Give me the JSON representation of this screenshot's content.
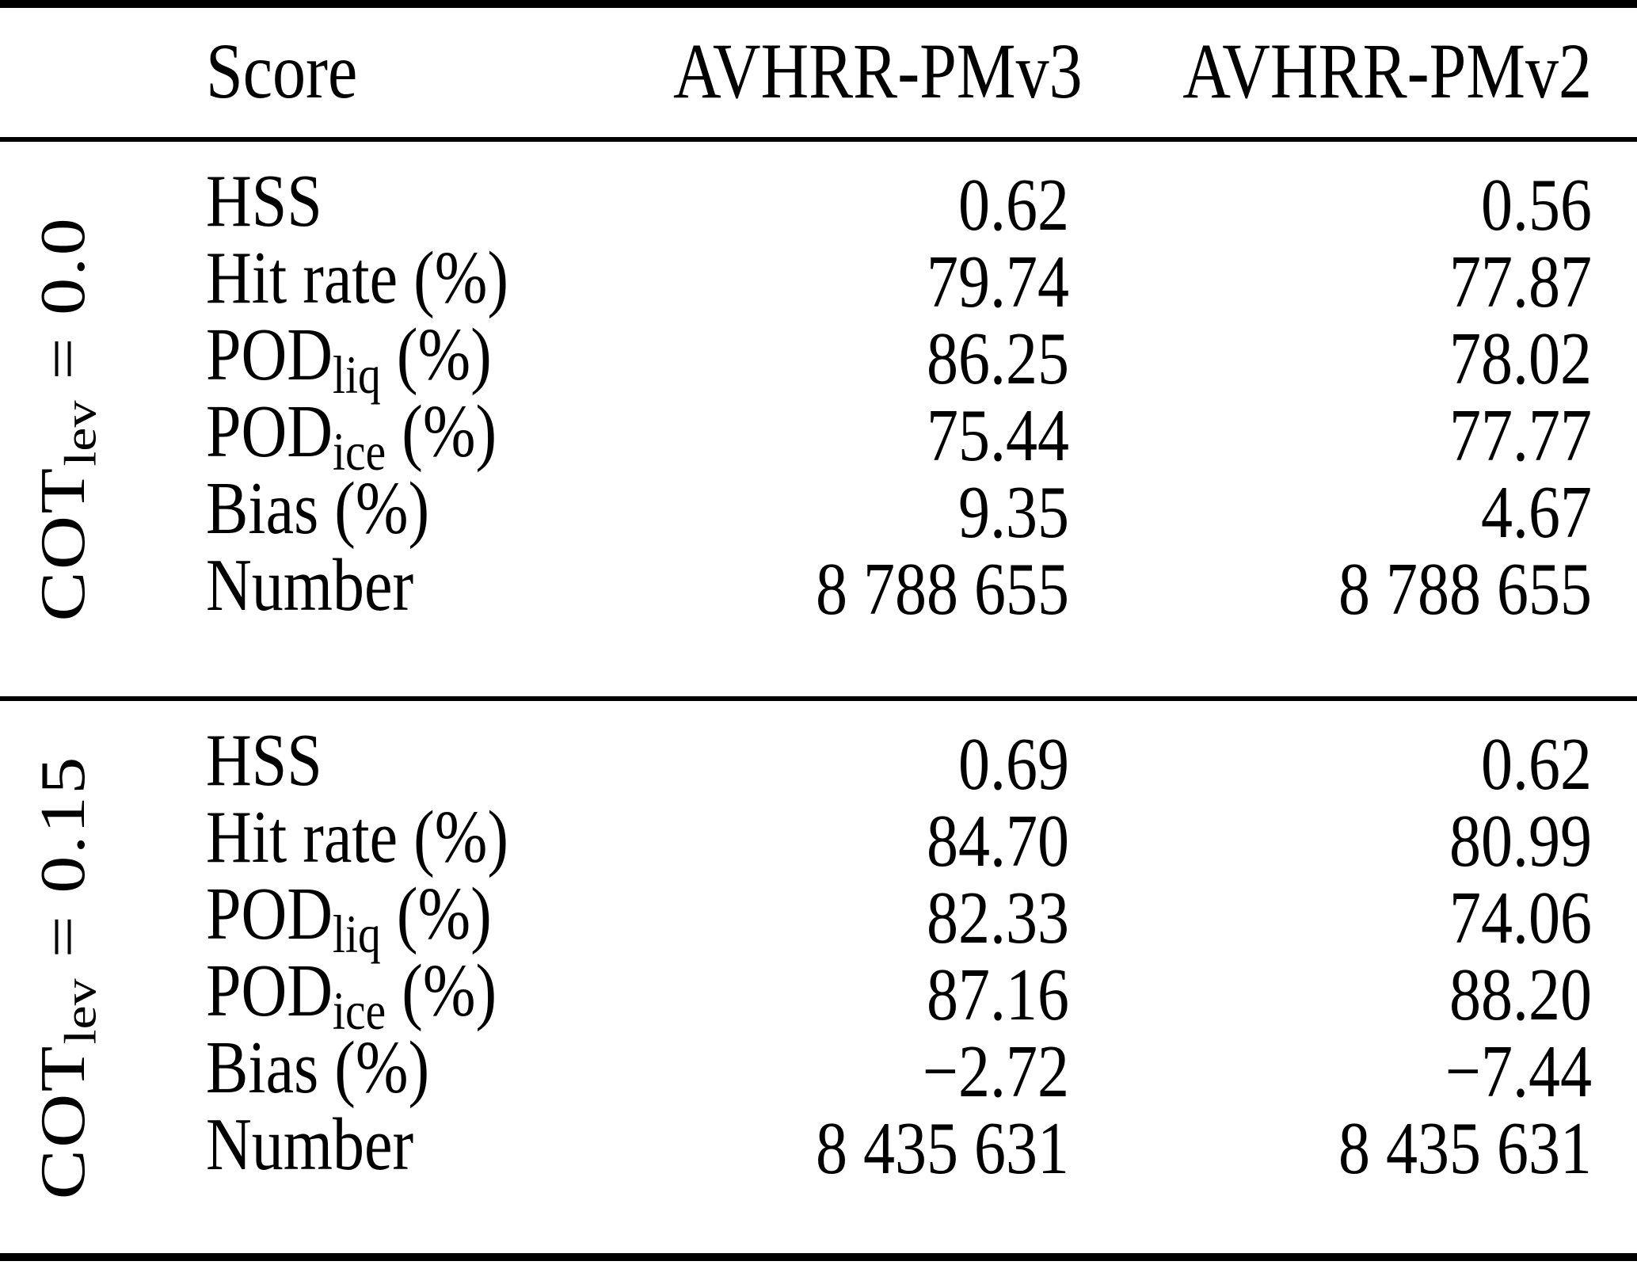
{
  "table": {
    "header": {
      "score_label": "Score",
      "col_pmv3": "AVHRR-PMv3",
      "col_pmv2": "AVHRR-PMv2"
    },
    "sections": [
      {
        "group": {
          "pre": "COT",
          "sub": "lev",
          "post": " = 0.0"
        },
        "rows": [
          {
            "label": {
              "pre": "HSS",
              "sub": "",
              "post": ""
            },
            "pmv3": "0.62",
            "pmv2": "0.56"
          },
          {
            "label": {
              "pre": "Hit rate (%)",
              "sub": "",
              "post": ""
            },
            "pmv3": "79.74",
            "pmv2": "77.87"
          },
          {
            "label": {
              "pre": "POD",
              "sub": "liq",
              "post": " (%)"
            },
            "pmv3": "86.25",
            "pmv2": "78.02"
          },
          {
            "label": {
              "pre": "POD",
              "sub": "ice",
              "post": " (%)"
            },
            "pmv3": "75.44",
            "pmv2": "77.77"
          },
          {
            "label": {
              "pre": "Bias (%)",
              "sub": "",
              "post": ""
            },
            "pmv3": "9.35",
            "pmv2": "4.67"
          },
          {
            "label": {
              "pre": "Number",
              "sub": "",
              "post": ""
            },
            "pmv3": "8 788 655",
            "pmv2": "8 788 655"
          }
        ]
      },
      {
        "group": {
          "pre": "COT",
          "sub": "lev",
          "post": " = 0.15"
        },
        "rows": [
          {
            "label": {
              "pre": "HSS",
              "sub": "",
              "post": ""
            },
            "pmv3": "0.69",
            "pmv2": "0.62"
          },
          {
            "label": {
              "pre": "Hit rate (%)",
              "sub": "",
              "post": ""
            },
            "pmv3": "84.70",
            "pmv2": "80.99"
          },
          {
            "label": {
              "pre": "POD",
              "sub": "liq",
              "post": " (%)"
            },
            "pmv3": "82.33",
            "pmv2": "74.06"
          },
          {
            "label": {
              "pre": "POD",
              "sub": "ice",
              "post": " (%)"
            },
            "pmv3": "87.16",
            "pmv2": "88.20"
          },
          {
            "label": {
              "pre": "Bias (%)",
              "sub": "",
              "post": ""
            },
            "pmv3": "−2.72",
            "pmv2": "−7.44"
          },
          {
            "label": {
              "pre": "Number",
              "sub": "",
              "post": ""
            },
            "pmv3": "8 435 631",
            "pmv2": "8 435 631"
          }
        ]
      }
    ]
  },
  "chart_data": {
    "type": "table",
    "columns": [
      "Score",
      "AVHRR-PMv3",
      "AVHRR-PMv2"
    ],
    "row_groups": [
      {
        "group": "COT_lev = 0.0",
        "rows": [
          [
            "HSS",
            0.62,
            0.56
          ],
          [
            "Hit rate (%)",
            79.74,
            77.87
          ],
          [
            "POD_liq (%)",
            86.25,
            78.02
          ],
          [
            "POD_ice (%)",
            75.44,
            77.77
          ],
          [
            "Bias (%)",
            9.35,
            4.67
          ],
          [
            "Number",
            8788655,
            8788655
          ]
        ]
      },
      {
        "group": "COT_lev = 0.15",
        "rows": [
          [
            "HSS",
            0.69,
            0.62
          ],
          [
            "Hit rate (%)",
            84.7,
            80.99
          ],
          [
            "POD_liq (%)",
            82.33,
            74.06
          ],
          [
            "POD_ice (%)",
            87.16,
            88.2
          ],
          [
            "Bias (%)",
            -2.72,
            -7.44
          ],
          [
            "Number",
            8435631,
            8435631
          ]
        ]
      }
    ]
  }
}
